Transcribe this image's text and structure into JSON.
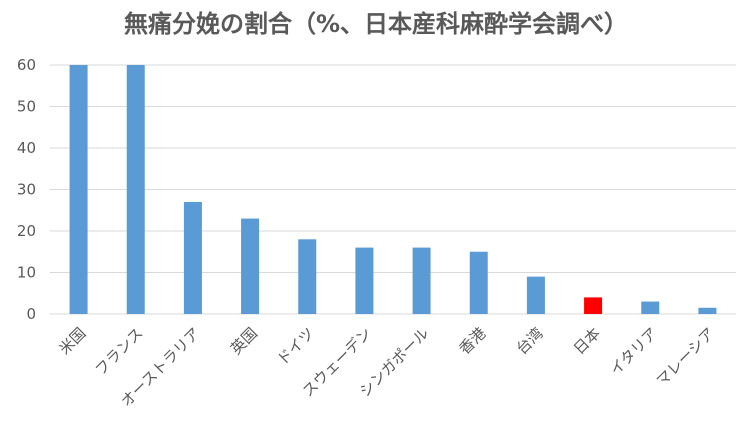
{
  "chart_data": {
    "type": "bar",
    "title": "無痛分娩の割合（%、日本産科麻酔学会調べ）",
    "xlabel": "",
    "ylabel": "",
    "ylim": [
      0,
      60
    ],
    "yticks": [
      0,
      10,
      20,
      30,
      40,
      50,
      60
    ],
    "grid": true,
    "legend": "none",
    "categories": [
      "米国",
      "フランス",
      "オーストラリア",
      "英国",
      "ドイツ",
      "スウェーデン",
      "シンガポール",
      "香港",
      "台湾",
      "日本",
      "イタリア",
      "マレーシア"
    ],
    "values": [
      60,
      60,
      27,
      23,
      18,
      16,
      16,
      15,
      9,
      4,
      3,
      1.5
    ],
    "colors": {
      "bar": "#5b9bd5",
      "highlight": "#ff0000",
      "grid": "#d9d9d9",
      "text": "#595959"
    },
    "highlight_category": "日本"
  }
}
